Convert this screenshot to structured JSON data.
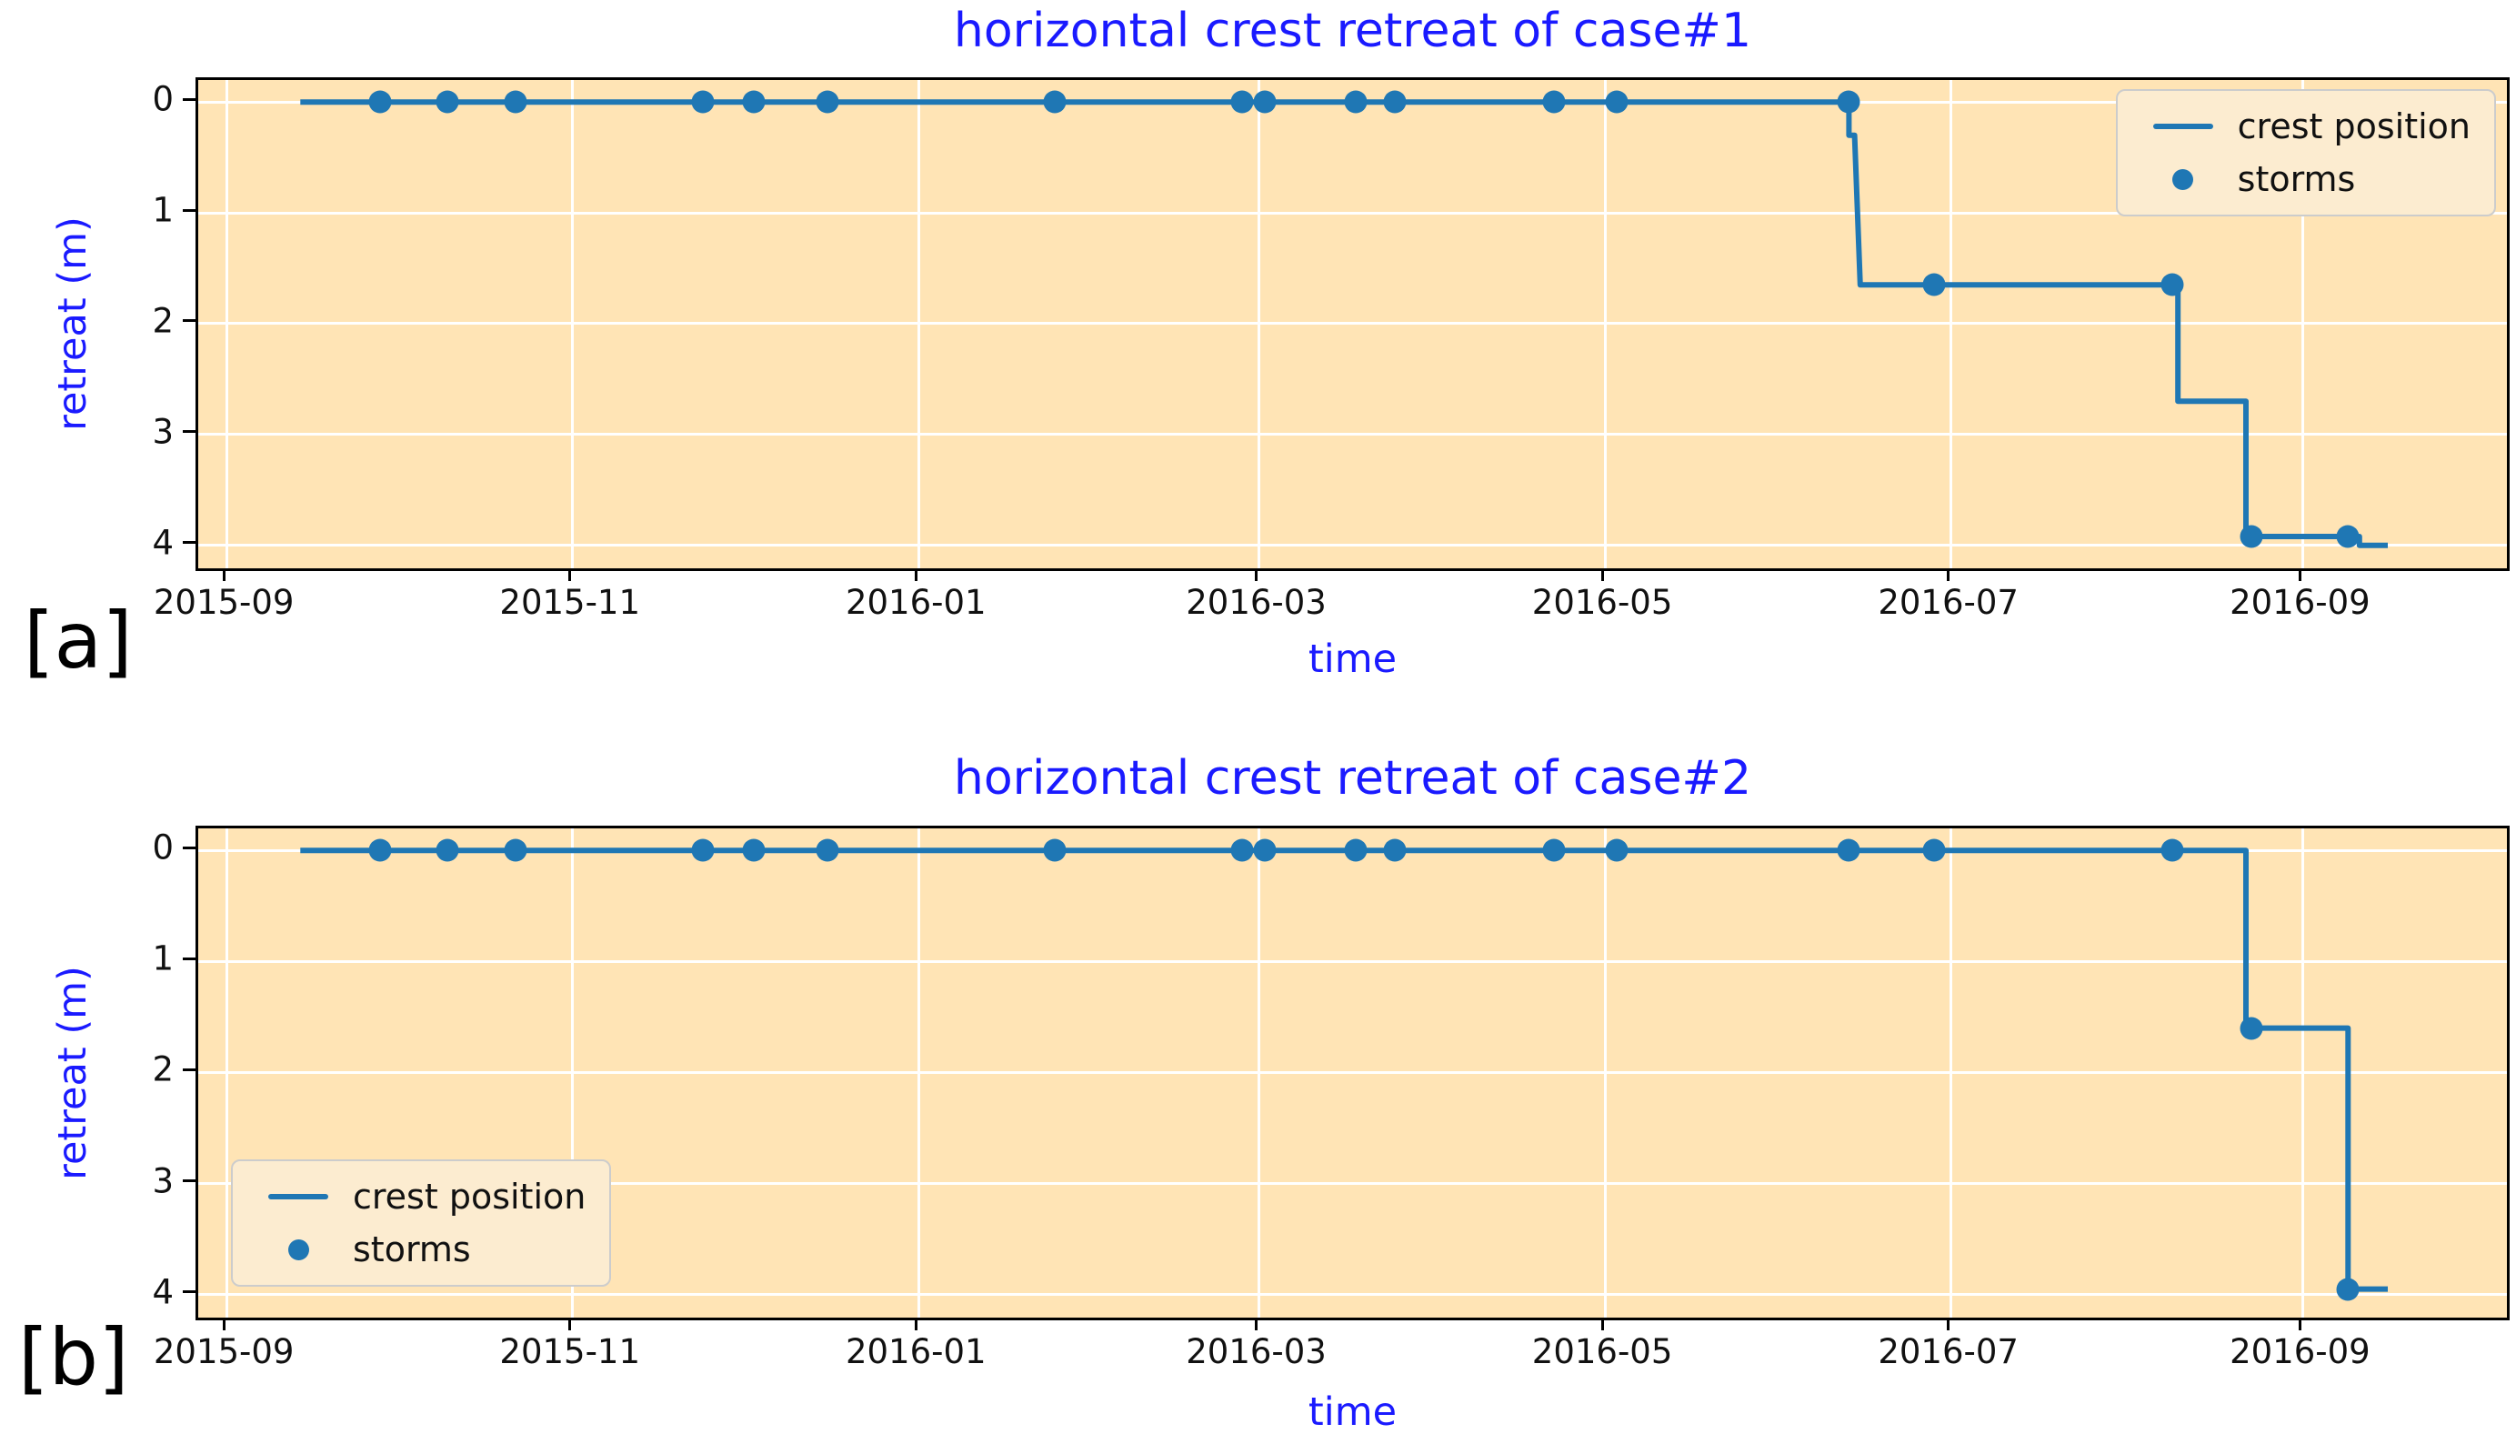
{
  "figure_labels": [
    "[a]",
    "[b]"
  ],
  "colors": {
    "plot_background": "#ffe4b5",
    "line": "#1f77b4",
    "axis_label_text": "#1a1aff",
    "tick_text": "#111111",
    "grid": "#ffffff",
    "plot_border": "#000000",
    "legend_background": "#fcecd0",
    "legend_border": "#cccccc"
  },
  "chart_data": [
    {
      "type": "line",
      "title": "horizontal crest retreat of case#1",
      "xlabel": "time",
      "ylabel": "retreat (m)",
      "grid": true,
      "y_axis_inverted": true,
      "xlim": [
        "2015-08-27",
        "2016-10-07"
      ],
      "ylim": [
        0,
        4
      ],
      "y_ticks": [
        0,
        1,
        2,
        3,
        4
      ],
      "x_ticks": [
        {
          "date": "2015-09-01",
          "label": "2015-09"
        },
        {
          "date": "2015-11-01",
          "label": "2015-11"
        },
        {
          "date": "2016-01-01",
          "label": "2016-01"
        },
        {
          "date": "2016-03-01",
          "label": "2016-03"
        },
        {
          "date": "2016-05-01",
          "label": "2016-05"
        },
        {
          "date": "2016-07-01",
          "label": "2016-07"
        },
        {
          "date": "2016-09-01",
          "label": "2016-09"
        }
      ],
      "legend_position": "upper-right",
      "legend_entries": [
        "crest position",
        "storms"
      ],
      "series": [
        {
          "name": "crest position",
          "type": "step-line",
          "points": [
            [
              "2015-09-14",
              0
            ],
            [
              "2016-06-13",
              0
            ],
            [
              "2016-06-13",
              0.3
            ],
            [
              "2016-06-14",
              0.3
            ],
            [
              "2016-06-15",
              1.65
            ],
            [
              "2016-08-10",
              1.65
            ],
            [
              "2016-08-10",
              2.7
            ],
            [
              "2016-08-22",
              2.7
            ],
            [
              "2016-08-22",
              3.92
            ],
            [
              "2016-09-11",
              3.92
            ],
            [
              "2016-09-11",
              4.0
            ],
            [
              "2016-09-16",
              4.0
            ]
          ]
        },
        {
          "name": "storms",
          "type": "scatter",
          "points": [
            [
              "2015-09-28",
              0
            ],
            [
              "2015-10-10",
              0
            ],
            [
              "2015-10-22",
              0
            ],
            [
              "2015-11-24",
              0
            ],
            [
              "2015-12-03",
              0
            ],
            [
              "2015-12-16",
              0
            ],
            [
              "2016-01-25",
              0
            ],
            [
              "2016-02-27",
              0
            ],
            [
              "2016-03-02",
              0
            ],
            [
              "2016-03-18",
              0
            ],
            [
              "2016-03-25",
              0
            ],
            [
              "2016-04-22",
              0
            ],
            [
              "2016-05-03",
              0
            ],
            [
              "2016-06-13",
              0
            ],
            [
              "2016-06-28",
              1.65
            ],
            [
              "2016-08-09",
              1.65
            ],
            [
              "2016-08-23",
              3.92
            ],
            [
              "2016-09-09",
              3.92
            ]
          ]
        }
      ]
    },
    {
      "type": "line",
      "title": "horizontal crest retreat of case#2",
      "xlabel": "time",
      "ylabel": "retreat (m)",
      "grid": true,
      "y_axis_inverted": true,
      "xlim": [
        "2015-08-27",
        "2016-10-07"
      ],
      "ylim": [
        0,
        4
      ],
      "y_ticks": [
        0,
        1,
        2,
        3,
        4
      ],
      "x_ticks": [
        {
          "date": "2015-09-01",
          "label": "2015-09"
        },
        {
          "date": "2015-11-01",
          "label": "2015-11"
        },
        {
          "date": "2016-01-01",
          "label": "2016-01"
        },
        {
          "date": "2016-03-01",
          "label": "2016-03"
        },
        {
          "date": "2016-05-01",
          "label": "2016-05"
        },
        {
          "date": "2016-07-01",
          "label": "2016-07"
        },
        {
          "date": "2016-09-01",
          "label": "2016-09"
        }
      ],
      "legend_position": "lower-left",
      "legend_entries": [
        "crest position",
        "storms"
      ],
      "series": [
        {
          "name": "crest position",
          "type": "step-line",
          "points": [
            [
              "2015-09-14",
              0
            ],
            [
              "2016-08-22",
              0
            ],
            [
              "2016-08-22",
              1.6
            ],
            [
              "2016-09-09",
              1.6
            ],
            [
              "2016-09-09",
              3.95
            ],
            [
              "2016-09-16",
              3.95
            ]
          ]
        },
        {
          "name": "storms",
          "type": "scatter",
          "points": [
            [
              "2015-09-28",
              0
            ],
            [
              "2015-10-10",
              0
            ],
            [
              "2015-10-22",
              0
            ],
            [
              "2015-11-24",
              0
            ],
            [
              "2015-12-03",
              0
            ],
            [
              "2015-12-16",
              0
            ],
            [
              "2016-01-25",
              0
            ],
            [
              "2016-02-27",
              0
            ],
            [
              "2016-03-02",
              0
            ],
            [
              "2016-03-18",
              0
            ],
            [
              "2016-03-25",
              0
            ],
            [
              "2016-04-22",
              0
            ],
            [
              "2016-05-03",
              0
            ],
            [
              "2016-06-13",
              0
            ],
            [
              "2016-06-28",
              0
            ],
            [
              "2016-08-09",
              0
            ],
            [
              "2016-08-23",
              1.6
            ],
            [
              "2016-09-09",
              3.95
            ]
          ]
        }
      ]
    }
  ]
}
